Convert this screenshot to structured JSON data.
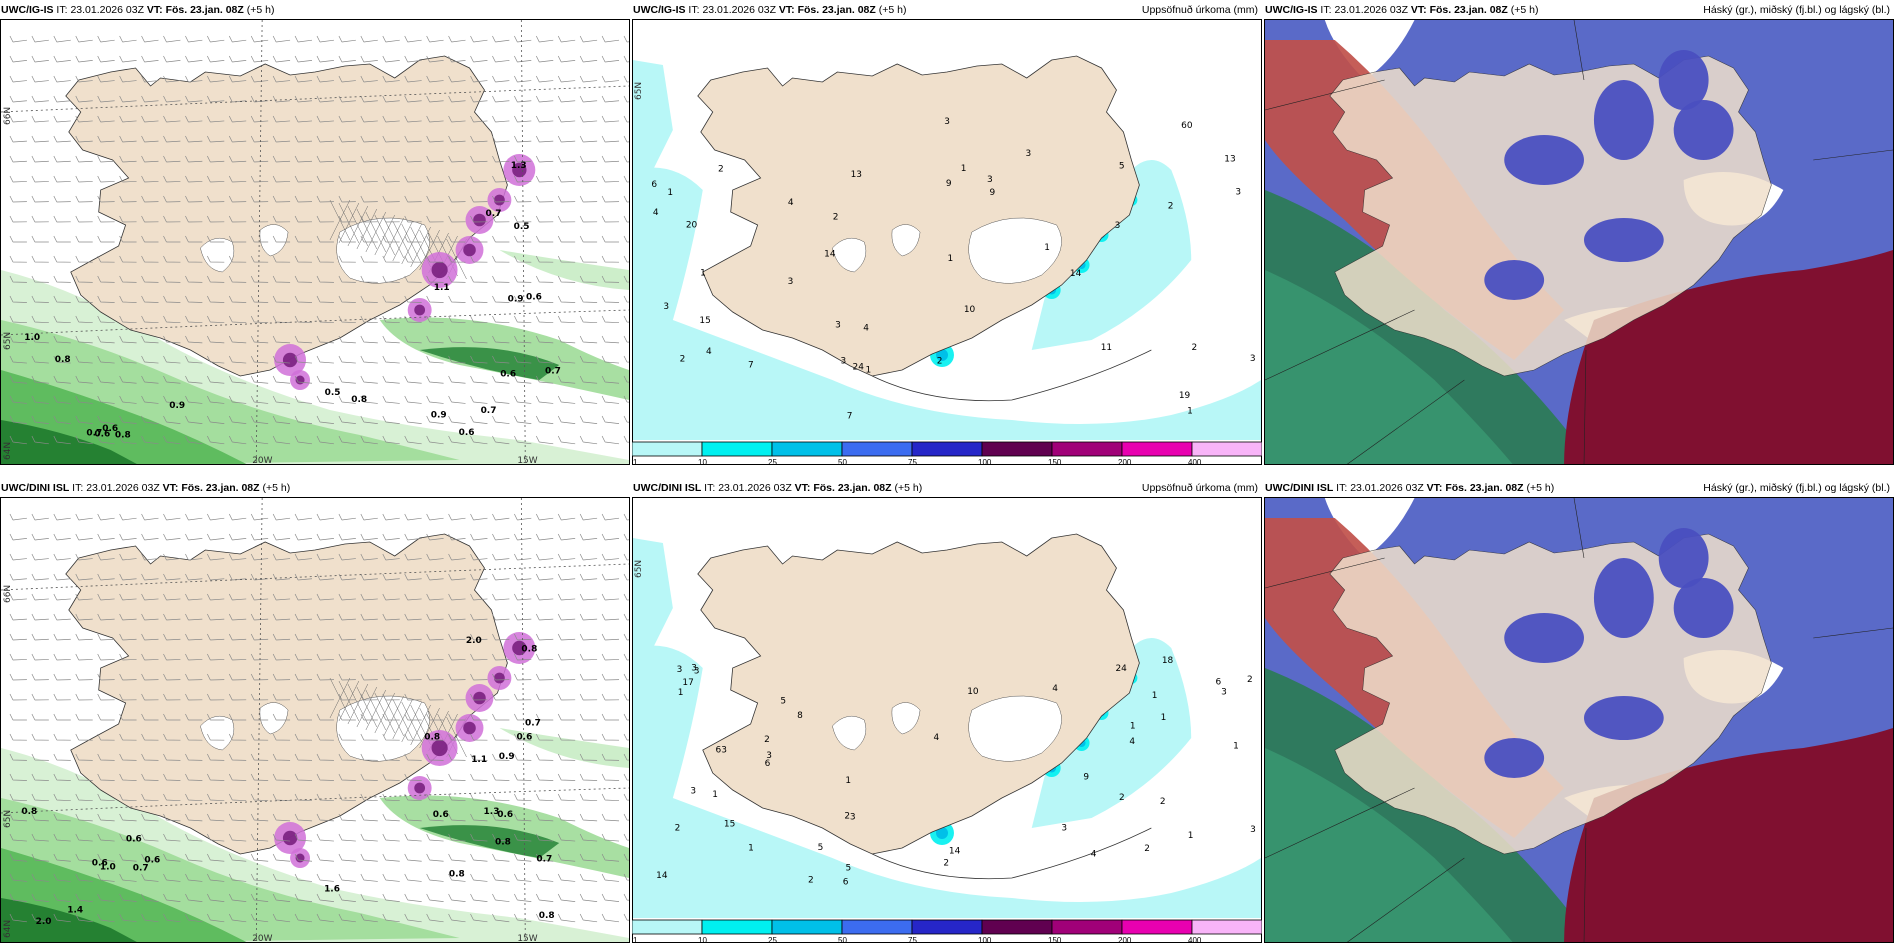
{
  "panels": [
    {
      "id": "p1",
      "model": "UWC/IG-IS",
      "it_label": "IT:",
      "it": "23.01.2026 03Z",
      "vt_label": "VT:",
      "vt": "Fös. 23.jan. 08Z",
      "lead": "(+5 h)",
      "right_title": "",
      "kind": "precip-rate",
      "labels": [
        "0.7",
        "0.9",
        "0.7",
        "1.0",
        "0.7",
        "1.1",
        "0.6",
        "0.5",
        "0.5",
        "0.8",
        "0.8",
        "0.6",
        "0.6",
        "0.6",
        "1.3",
        "0.8",
        "0.7",
        "0.9",
        "0.9",
        "0.6"
      ],
      "axis": {
        "lon1": "20W",
        "lon2": "15W",
        "lat1": "66N",
        "lat2": "65N",
        "lat3": "64N"
      }
    },
    {
      "id": "p2",
      "model": "UWC/IG-IS",
      "it_label": "IT:",
      "it": "23.01.2026 03Z",
      "vt_label": "VT:",
      "vt": "Fös. 23.jan. 08Z",
      "lead": "(+5 h)",
      "right_title": "Uppsöfnuð úrkoma (mm)",
      "kind": "accum",
      "labels": [
        "1",
        "1",
        "3",
        "2",
        "4",
        "3",
        "4",
        "3",
        "2",
        "3",
        "7",
        "2",
        "3",
        "1",
        "3",
        "3",
        "6",
        "19",
        "20",
        "60",
        "7",
        "9",
        "4",
        "5",
        "1",
        "3",
        "2",
        "1",
        "4",
        "13",
        "24",
        "11",
        "15",
        "10",
        "14",
        "14",
        "13",
        "9",
        "2",
        "2",
        "1",
        "1",
        "3",
        "3"
      ],
      "axis": {
        "lat2": "65N"
      }
    },
    {
      "id": "p3",
      "model": "UWC/IG-IS",
      "it_label": "IT:",
      "it": "23.01.2026 03Z",
      "vt_label": "VT:",
      "vt": "Fös. 23.jan. 08Z",
      "lead": "(+5 h)",
      "right_title": "Háský (gr.), miðský (fj.bl.) og lágský (bl.)",
      "kind": "cloud"
    },
    {
      "id": "p4",
      "model": "UWC/DINI ISL",
      "it_label": "IT:",
      "it": "23.01.2026 03Z",
      "vt_label": "VT:",
      "vt": "Fös. 23.jan. 08Z",
      "lead": "(+5 h)",
      "right_title": "",
      "kind": "precip-rate",
      "labels": [
        "0.6",
        "1.6",
        "0.6",
        "0.8",
        "0.7",
        "0.7",
        "0.6",
        "0.6",
        "2.0",
        "2.0",
        "0.8",
        "0.9",
        "1.4",
        "0.8",
        "0.8",
        "0.7",
        "0.8",
        "0.8",
        "0.6",
        "1.3",
        "1.1",
        "1.0",
        "0.6"
      ],
      "axis": {
        "lon1": "20W",
        "lon2": "15W",
        "lat1": "66N",
        "lat2": "65N",
        "lat3": "64N"
      }
    },
    {
      "id": "p5",
      "model": "UWC/DINI ISL",
      "it_label": "IT:",
      "it": "23.01.2026 03Z",
      "vt_label": "VT:",
      "vt": "Fös. 23.jan. 08Z",
      "lead": "(+5 h)",
      "right_title": "Uppsöfnuð úrkoma (mm)",
      "kind": "accum",
      "labels": [
        "2",
        "1",
        "2",
        "3",
        "5",
        "1",
        "2",
        "1",
        "3",
        "14",
        "3",
        "2",
        "1",
        "4",
        "3",
        "3",
        "6",
        "6",
        "5",
        "2",
        "3",
        "18",
        "63",
        "4",
        "3",
        "4",
        "5",
        "2",
        "1",
        "1",
        "1",
        "2",
        "3",
        "3",
        "14",
        "24",
        "15",
        "9",
        "17",
        "10",
        "8",
        "4",
        "6",
        "2",
        "1",
        "1",
        "2"
      ],
      "axis": {
        "lat2": "65N"
      }
    },
    {
      "id": "p6",
      "model": "UWC/DINI ISL",
      "it_label": "IT:",
      "it": "23.01.2026 03Z",
      "vt_label": "VT:",
      "vt": "Fös. 23.jan. 08Z",
      "lead": "(+5 h)",
      "right_title": "Háský (gr.), miðský (fj.bl.) og lágský (bl.)",
      "kind": "cloud"
    }
  ],
  "colorbar": {
    "colors": [
      "#b8f7f7",
      "#00f0f0",
      "#00c0e8",
      "#3c6cf0",
      "#2626c8",
      "#600050",
      "#a00078",
      "#e800b0",
      "#f8b4f8"
    ],
    "ticks": [
      "1",
      "10",
      "25",
      "50",
      "75",
      "100",
      "150",
      "200",
      "400"
    ]
  },
  "colors": {
    "land": "#f0e0cc",
    "wind": "#8a8a8a"
  }
}
